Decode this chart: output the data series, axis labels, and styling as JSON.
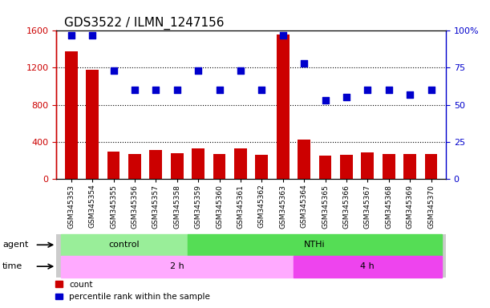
{
  "title": "GDS3522 / ILMN_1247156",
  "samples": [
    "GSM345353",
    "GSM345354",
    "GSM345355",
    "GSM345356",
    "GSM345357",
    "GSM345358",
    "GSM345359",
    "GSM345360",
    "GSM345361",
    "GSM345362",
    "GSM345363",
    "GSM345364",
    "GSM345365",
    "GSM345366",
    "GSM345367",
    "GSM345368",
    "GSM345369",
    "GSM345370"
  ],
  "counts": [
    1380,
    1175,
    290,
    270,
    310,
    275,
    330,
    270,
    330,
    260,
    1560,
    420,
    245,
    260,
    280,
    270,
    265,
    270
  ],
  "percentiles": [
    97,
    97,
    73,
    60,
    60,
    60,
    73,
    60,
    73,
    60,
    97,
    78,
    53,
    55,
    60,
    60,
    57,
    60
  ],
  "count_color": "#cc0000",
  "percentile_color": "#0000cc",
  "ylim_left": [
    0,
    1600
  ],
  "ylim_right": [
    0,
    100
  ],
  "yticks_left": [
    0,
    400,
    800,
    1200,
    1600
  ],
  "yticks_right": [
    0,
    25,
    50,
    75,
    100
  ],
  "agent_groups": [
    {
      "label": "control",
      "start": 0,
      "end": 5,
      "color": "#99ee99"
    },
    {
      "label": "NTHi",
      "start": 6,
      "end": 17,
      "color": "#55dd55"
    }
  ],
  "time_groups": [
    {
      "label": "2 h",
      "start": 0,
      "end": 10,
      "color": "#ffaaff"
    },
    {
      "label": "4 h",
      "start": 11,
      "end": 17,
      "color": "#ee44ee"
    }
  ],
  "legend_count_label": "count",
  "legend_percentile_label": "percentile rank within the sample",
  "count_color_legend": "#cc0000",
  "percentile_color_legend": "#0000cc",
  "plot_bg_color": "#ffffff",
  "label_bg_color": "#cccccc",
  "title_fontsize": 11,
  "tick_fontsize": 8,
  "bar_width": 0.6
}
